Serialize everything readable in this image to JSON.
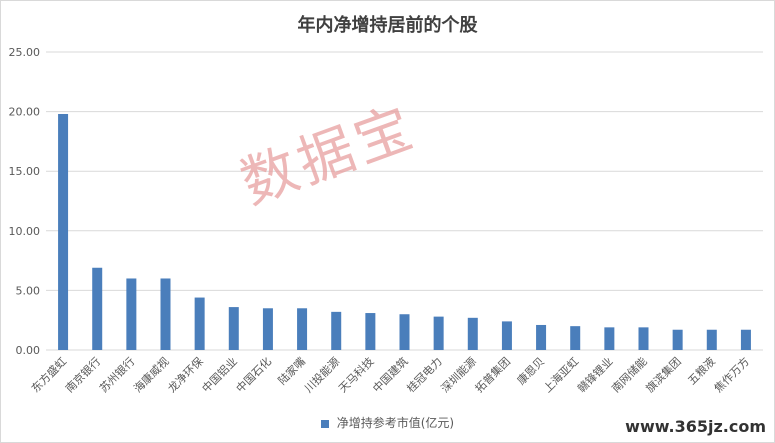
{
  "watermark": "数据宝",
  "site_watermark": "www.365jz.com",
  "theme": {
    "bar_color": "#4a7ebb",
    "grid_color": "#d9d9d9",
    "watermark_color": "#e8a0a0"
  },
  "chart_data": {
    "type": "bar",
    "title": "年内净增持居前的个股",
    "xlabel": "",
    "ylabel": "",
    "ylim": [
      0,
      25
    ],
    "yticks": [
      "0.00",
      "5.00",
      "10.00",
      "15.00",
      "20.00",
      "25.00"
    ],
    "grid": true,
    "legend_position": "bottom",
    "categories": [
      "东方盛虹",
      "南京银行",
      "苏州银行",
      "海康威视",
      "龙净环保",
      "中国铝业",
      "中国石化",
      "陆家嘴",
      "川投能源",
      "天马科技",
      "中国建筑",
      "桂冠电力",
      "深圳能源",
      "拓普集团",
      "康恩贝",
      "上海亚虹",
      "赣锋锂业",
      "南网储能",
      "旗滨集团",
      "五粮液",
      "焦作万方"
    ],
    "series": [
      {
        "name": "净增持参考市值(亿元)",
        "values": [
          19.8,
          6.9,
          6.0,
          6.0,
          4.4,
          3.6,
          3.5,
          3.5,
          3.2,
          3.1,
          3.0,
          2.8,
          2.7,
          2.4,
          2.1,
          2.0,
          1.9,
          1.9,
          1.7,
          1.7,
          1.7
        ]
      }
    ]
  }
}
